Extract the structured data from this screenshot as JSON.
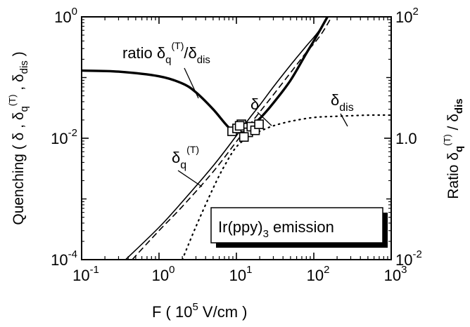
{
  "chart_data": {
    "type": "line",
    "x_scale": "log",
    "y_scale": "log",
    "y2_scale": "log",
    "xlim": [
      0.1,
      1000
    ],
    "ylim": [
      0.0001,
      1
    ],
    "y2lim": [
      0.01,
      100
    ],
    "grid": false,
    "legend": "none",
    "x_ticks": [
      {
        "base": "10",
        "exp": "-1"
      },
      {
        "base": "10",
        "exp": "0"
      },
      {
        "base": "10",
        "exp": "1"
      },
      {
        "base": "10",
        "exp": "2"
      },
      {
        "base": "10",
        "exp": "3"
      }
    ],
    "y_ticks": [
      {
        "base": "10",
        "exp": "-4"
      },
      {
        "base": "10",
        "exp": "-2"
      },
      {
        "base": "10",
        "exp": "0"
      }
    ],
    "y2_ticks": [
      {
        "base": "10",
        "exp": "-2"
      },
      {
        "base": "1",
        "exp": "0.0"
      },
      {
        "base": "10",
        "exp": "2"
      }
    ],
    "xlabel": {
      "pre": "F   ( 10",
      "sup": "5",
      "post": " V/cm )"
    },
    "ylabel": "Quenching ( δ , δq(T) , δdis )",
    "y2label": "Ratio δq(T) / δdis",
    "legend_box": {
      "pre": "Ir(ppy)",
      "sub": "3",
      "post": " emission"
    },
    "annotations": {
      "ratio": {
        "pre": "ratio δ",
        "sub": "q",
        "sup": "(T)",
        "mid": "/δ",
        "sub2": "dis"
      },
      "delta": "δ",
      "delta_dis": {
        "base": "δ",
        "sub": "dis"
      },
      "delta_q": {
        "base": "δ",
        "sub": "q",
        "sup": "(T)"
      }
    },
    "series": [
      {
        "style": "thin solid",
        "x": [
          0.37,
          1,
          2,
          5,
          10,
          15,
          20,
          30,
          50,
          80,
          100,
          120,
          150
        ],
        "y": [
          0.0001,
          0.00034,
          0.0009,
          0.0035,
          0.011,
          0.022,
          0.035,
          0.07,
          0.16,
          0.33,
          0.46,
          0.62,
          1.0
        ]
      },
      {
        "style": "dashed",
        "x": [
          0.45,
          1,
          2,
          5,
          10,
          15,
          20,
          30,
          50,
          80,
          100,
          130,
          170
        ],
        "y": [
          0.0001,
          0.0003,
          0.00075,
          0.0028,
          0.0088,
          0.017,
          0.027,
          0.052,
          0.12,
          0.26,
          0.36,
          0.56,
          1.0
        ]
      },
      {
        "style": "dotted",
        "x": [
          2,
          3,
          5,
          7,
          10,
          15,
          20,
          30,
          50,
          100,
          200,
          500,
          1000
        ],
        "y": [
          0.0001,
          0.00035,
          0.0015,
          0.0035,
          0.0072,
          0.011,
          0.013,
          0.016,
          0.019,
          0.022,
          0.023,
          0.024,
          0.024
        ]
      },
      {
        "style": "thick solid",
        "axis": "right",
        "x": [
          0.1,
          0.3,
          1,
          2,
          3,
          5,
          8,
          10,
          12,
          15,
          20,
          30,
          50,
          80,
          100,
          120,
          150
        ],
        "y": [
          13,
          12.5,
          10.5,
          8.0,
          5.7,
          3.0,
          1.5,
          1.35,
          1.4,
          1.55,
          2.1,
          3.8,
          9.0,
          25.0,
          40.0,
          60.0,
          100.0
        ]
      }
    ],
    "markers": {
      "symbol": "square",
      "x": [
        8.8,
        10.2,
        11.6,
        13.0,
        14.2,
        15.6,
        17.4,
        19.6,
        12.5,
        11.0
      ],
      "y": [
        1.3,
        1.45,
        1.7,
        1.5,
        1.25,
        1.55,
        1.35,
        1.7,
        1.05,
        1.6
      ]
    }
  }
}
